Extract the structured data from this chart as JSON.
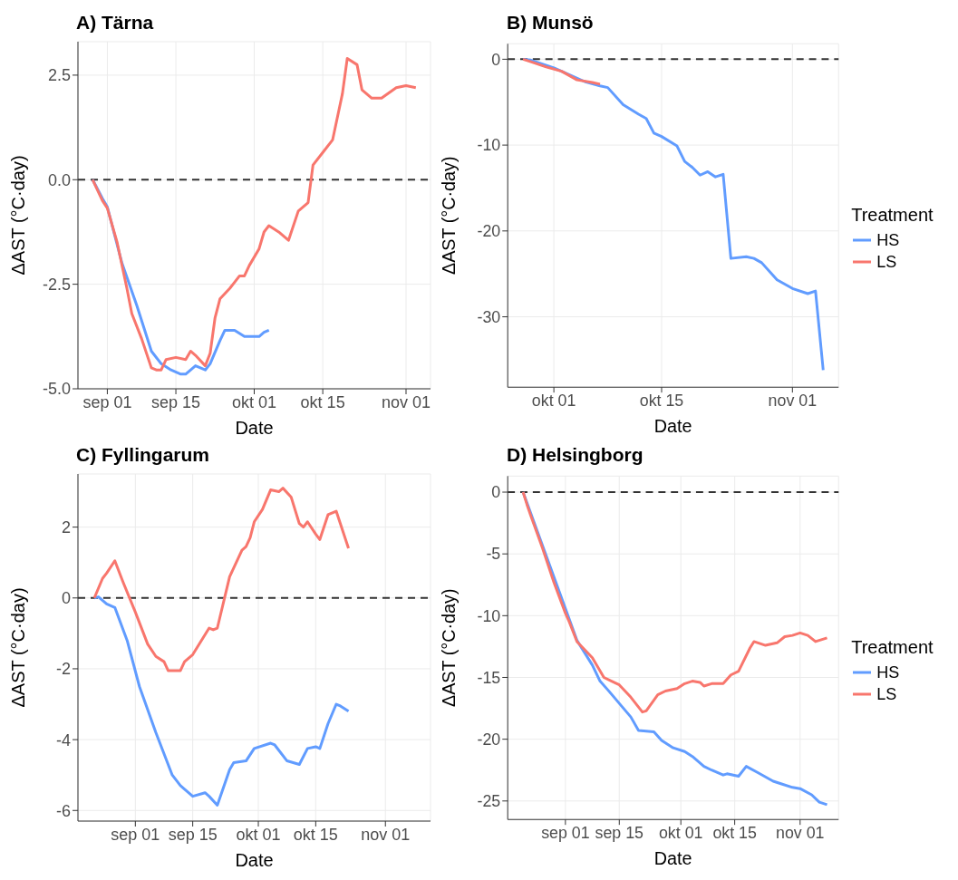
{
  "chart_data": [
    {
      "type": "line",
      "title": "A) Tärna",
      "xlabel": "Date",
      "ylabel": "ΔAST (°C·day)",
      "xlim": [
        "--08-26",
        "--11-06"
      ],
      "xticks": [
        {
          "value": "--09-01",
          "label": "sep 01"
        },
        {
          "value": "--09-15",
          "label": "sep 15"
        },
        {
          "value": "--10-01",
          "label": "okt 01"
        },
        {
          "value": "--10-15",
          "label": "okt 15"
        },
        {
          "value": "--11-01",
          "label": "nov 01"
        }
      ],
      "ylim": [
        -5.0,
        3.3
      ],
      "yticks": [
        {
          "value": -5,
          "label": "-5.0"
        },
        -2.5,
        {
          "value": 0,
          "label": "0.0"
        },
        2.5
      ],
      "grid": true,
      "legend": false,
      "line_style": "solid",
      "ref_lines": [
        {
          "axis": "y",
          "value": 0,
          "color": "#333333",
          "line_style": "dashed"
        }
      ],
      "series": [
        {
          "color": "#619cff",
          "x": [
            "--08-29",
            "--08-31",
            "--09-01",
            "--09-04",
            "--09-07",
            "--09-10",
            "--09-12",
            "--09-14",
            "--09-16",
            "--09-17",
            "--09-19",
            "--09-21",
            "--09-22",
            "--09-24",
            "--09-25",
            "--09-27",
            "--09-29",
            "--10-02",
            "--10-03",
            "--10-04"
          ],
          "values": [
            0,
            -0.45,
            -0.65,
            -2.0,
            -3.0,
            -4.1,
            -4.4,
            -4.55,
            -4.65,
            -4.65,
            -4.45,
            -4.55,
            -4.4,
            -3.85,
            -3.6,
            -3.6,
            -3.75,
            -3.75,
            -3.65,
            -3.6
          ]
        },
        {
          "color": "#f8766d",
          "x": [
            "--08-29",
            "--08-31",
            "--09-01",
            "--09-03",
            "--09-05",
            "--09-06",
            "--09-08",
            "--09-10",
            "--09-11",
            "--09-12",
            "--09-13",
            "--09-15",
            "--09-17",
            "--09-18",
            "--09-19",
            "--09-21",
            "--09-22",
            "--09-23",
            "--09-24",
            "--09-26",
            "--09-28",
            "--09-29",
            "--09-30",
            "--10-02",
            "--10-03",
            "--10-04",
            "--10-06",
            "--10-08",
            "--10-10",
            "--10-12",
            "--10-13",
            "--10-15",
            "--10-17",
            "--10-19",
            "--10-20",
            "--10-22",
            "--10-23",
            "--10-25",
            "--10-27",
            "--10-30",
            "--11-01",
            "--11-03"
          ],
          "values": [
            0,
            -0.5,
            -0.68,
            -1.5,
            -2.6,
            -3.2,
            -3.8,
            -4.5,
            -4.55,
            -4.55,
            -4.3,
            -4.25,
            -4.3,
            -4.1,
            -4.2,
            -4.45,
            -4.15,
            -3.3,
            -2.85,
            -2.6,
            -2.3,
            -2.3,
            -2.05,
            -1.65,
            -1.25,
            -1.1,
            -1.25,
            -1.45,
            -0.75,
            -0.55,
            0.35,
            0.65,
            0.95,
            2.05,
            2.9,
            2.75,
            2.15,
            1.95,
            1.95,
            2.2,
            2.25,
            2.2
          ]
        }
      ]
    },
    {
      "type": "line",
      "title": "B) Munsö",
      "xlabel": "Date",
      "ylabel": "ΔAST (°C·day)",
      "legend_title": "Treatment",
      "xlim": [
        "--09-25",
        "--11-07"
      ],
      "xticks": [
        {
          "value": "--10-01",
          "label": "okt 01"
        },
        {
          "value": "--10-15",
          "label": "okt 15"
        },
        {
          "value": "--11-01",
          "label": "nov 01"
        }
      ],
      "ylim": [
        -38.2,
        1.8
      ],
      "yticks": [
        -30,
        -20,
        -10,
        0
      ],
      "grid": true,
      "legend": "right",
      "line_style": "solid",
      "ref_lines": [
        {
          "axis": "y",
          "value": 0,
          "color": "#333333",
          "line_style": "dashed"
        }
      ],
      "series": [
        {
          "name": "HS",
          "color": "#619cff",
          "x": [
            "--09-27",
            "--09-28",
            "--10-01",
            "--10-02",
            "--10-05",
            "--10-07",
            "--10-08",
            "--10-10",
            "--10-12",
            "--10-13",
            "--10-14",
            "--10-15",
            "--10-17",
            "--10-18",
            "--10-19",
            "--10-20",
            "--10-21",
            "--10-22",
            "--10-23",
            "--10-24",
            "--10-26",
            "--10-27",
            "--10-28",
            "--10-30",
            "--10-31",
            "--11-01",
            "--11-03",
            "--11-04",
            "--11-05"
          ],
          "values": [
            0,
            -0.1,
            -1.0,
            -1.4,
            -2.6,
            -3.1,
            -3.3,
            -5.3,
            -6.4,
            -6.9,
            -8.6,
            -9.0,
            -10.1,
            -11.9,
            -12.6,
            -13.5,
            -13.1,
            -13.7,
            -13.4,
            -23.2,
            -23.0,
            -23.2,
            -23.7,
            -25.7,
            -26.2,
            -26.7,
            -27.3,
            -27.0,
            -36.2
          ]
        },
        {
          "name": "LS",
          "color": "#f8766d",
          "x": [
            "--09-27",
            "--09-28",
            "--09-30",
            "--10-02",
            "--10-04",
            "--10-06",
            "--10-07"
          ],
          "values": [
            0,
            -0.3,
            -0.9,
            -1.4,
            -2.4,
            -2.7,
            -2.9
          ]
        }
      ]
    },
    {
      "type": "line",
      "title": "C) Fyllingarum",
      "xlabel": "Date",
      "ylabel": "ΔAST (°C·day)",
      "xlim": [
        "--08-18",
        "--11-12"
      ],
      "xticks": [
        {
          "value": "--09-01",
          "label": "sep 01"
        },
        {
          "value": "--09-15",
          "label": "sep 15"
        },
        {
          "value": "--10-01",
          "label": "okt 01"
        },
        {
          "value": "--10-15",
          "label": "okt 15"
        },
        {
          "value": "--11-01",
          "label": "nov 01"
        }
      ],
      "ylim": [
        -6.3,
        3.5
      ],
      "yticks": [
        -6,
        -4,
        -2,
        0,
        2
      ],
      "grid": true,
      "legend": false,
      "line_style": "solid",
      "ref_lines": [
        {
          "axis": "y",
          "value": 0,
          "color": "#333333",
          "line_style": "dashed"
        }
      ],
      "series": [
        {
          "color": "#619cff",
          "x": [
            "--08-22",
            "--08-23",
            "--08-25",
            "--08-27",
            "--08-30",
            "--09-02",
            "--09-06",
            "--09-08",
            "--09-10",
            "--09-12",
            "--09-15",
            "--09-18",
            "--09-19",
            "--09-21",
            "--09-24",
            "--09-25",
            "--09-28",
            "--09-30",
            "--10-04",
            "--10-05",
            "--10-08",
            "--10-11",
            "--10-13",
            "--10-15",
            "--10-16",
            "--10-18",
            "--10-20",
            "--10-21",
            "--10-23"
          ],
          "values": [
            0,
            0.03,
            -0.17,
            -0.27,
            -1.2,
            -2.5,
            -3.8,
            -4.4,
            -5.0,
            -5.3,
            -5.6,
            -5.5,
            -5.6,
            -5.85,
            -4.85,
            -4.65,
            -4.6,
            -4.25,
            -4.1,
            -4.15,
            -4.6,
            -4.7,
            -4.25,
            -4.2,
            -4.25,
            -3.55,
            -3.0,
            -3.05,
            -3.2
          ]
        },
        {
          "color": "#f8766d",
          "x": [
            "--08-22",
            "--08-24",
            "--08-25",
            "--08-27",
            "--08-29",
            "--09-01",
            "--09-04",
            "--09-06",
            "--09-08",
            "--09-09",
            "--09-12",
            "--09-13",
            "--09-15",
            "--09-19",
            "--09-20",
            "--09-21",
            "--09-24",
            "--09-27",
            "--09-28",
            "--09-29",
            "--09-30",
            "--10-02",
            "--10-04",
            "--10-06",
            "--10-07",
            "--10-09",
            "--10-11",
            "--10-12",
            "--10-13",
            "--10-15",
            "--10-16",
            "--10-18",
            "--10-20",
            "--10-23"
          ],
          "values": [
            0,
            0.55,
            0.7,
            1.05,
            0.45,
            -0.4,
            -1.3,
            -1.65,
            -1.8,
            -2.05,
            -2.05,
            -1.8,
            -1.6,
            -0.85,
            -0.9,
            -0.85,
            0.6,
            1.35,
            1.45,
            1.7,
            2.15,
            2.5,
            3.05,
            3.0,
            3.1,
            2.85,
            2.1,
            2.0,
            2.15,
            1.8,
            1.65,
            2.35,
            2.45,
            1.4
          ]
        }
      ]
    },
    {
      "type": "line",
      "title": "D) Helsingborg",
      "xlabel": "Date",
      "ylabel": "ΔAST (°C·day)",
      "legend_title": "Treatment",
      "xlim": [
        "--08-17",
        "--11-11"
      ],
      "xticks": [
        {
          "value": "--09-01",
          "label": "sep 01"
        },
        {
          "value": "--09-15",
          "label": "sep 15"
        },
        {
          "value": "--10-01",
          "label": "okt 01"
        },
        {
          "value": "--10-15",
          "label": "okt 15"
        },
        {
          "value": "--11-01",
          "label": "nov 01"
        }
      ],
      "ylim": [
        -26.5,
        1.3
      ],
      "yticks": [
        -25,
        -20,
        -15,
        -10,
        -5,
        0
      ],
      "grid": true,
      "legend": "right",
      "line_style": "solid",
      "ref_lines": [
        {
          "axis": "y",
          "value": 0,
          "color": "#333333",
          "line_style": "dashed"
        }
      ],
      "series": [
        {
          "name": "HS",
          "color": "#619cff",
          "x": [
            "--08-21",
            "--09-04",
            "--09-08",
            "--09-10",
            "--09-12",
            "--09-15",
            "--09-18",
            "--09-20",
            "--09-24",
            "--09-26",
            "--09-29",
            "--10-02",
            "--10-04",
            "--10-07",
            "--10-09",
            "--10-12",
            "--10-13",
            "--10-16",
            "--10-18",
            "--10-21",
            "--10-25",
            "--10-27",
            "--10-30",
            "--11-01",
            "--11-04",
            "--11-06",
            "--11-08"
          ],
          "values": [
            0,
            -12.0,
            -14.0,
            -15.3,
            -16.0,
            -17.1,
            -18.2,
            -19.3,
            -19.4,
            -20.1,
            -20.7,
            -21.0,
            -21.4,
            -22.2,
            -22.5,
            -22.9,
            -22.8,
            -23.0,
            -22.2,
            -22.7,
            -23.4,
            -23.6,
            -23.9,
            -24.0,
            -24.5,
            -25.1,
            -25.3
          ]
        },
        {
          "name": "LS",
          "color": "#f8766d",
          "x": [
            "--08-21",
            "--08-22",
            "--08-23",
            "--08-26",
            "--08-29",
            "--09-01",
            "--09-02",
            "--09-04",
            "--09-08",
            "--09-11",
            "--09-13",
            "--09-15",
            "--09-18",
            "--09-21",
            "--09-22",
            "--09-25",
            "--09-27",
            "--09-30",
            "--10-02",
            "--10-04",
            "--10-06",
            "--10-07",
            "--10-09",
            "--10-12",
            "--10-14",
            "--10-16",
            "--10-19",
            "--10-20",
            "--10-23",
            "--10-26",
            "--10-28",
            "--10-30",
            "--11-01",
            "--11-03",
            "--11-05",
            "--11-08"
          ],
          "values": [
            0,
            -1.0,
            -1.9,
            -4.5,
            -7.3,
            -9.8,
            -10.5,
            -12.1,
            -13.4,
            -15.0,
            -15.3,
            -15.6,
            -16.6,
            -17.8,
            -17.7,
            -16.4,
            -16.1,
            -15.9,
            -15.5,
            -15.3,
            -15.4,
            -15.7,
            -15.5,
            -15.5,
            -14.8,
            -14.5,
            -12.6,
            -12.1,
            -12.4,
            -12.2,
            -11.7,
            -11.6,
            -11.4,
            -11.6,
            -12.1,
            -11.8
          ]
        }
      ]
    }
  ]
}
